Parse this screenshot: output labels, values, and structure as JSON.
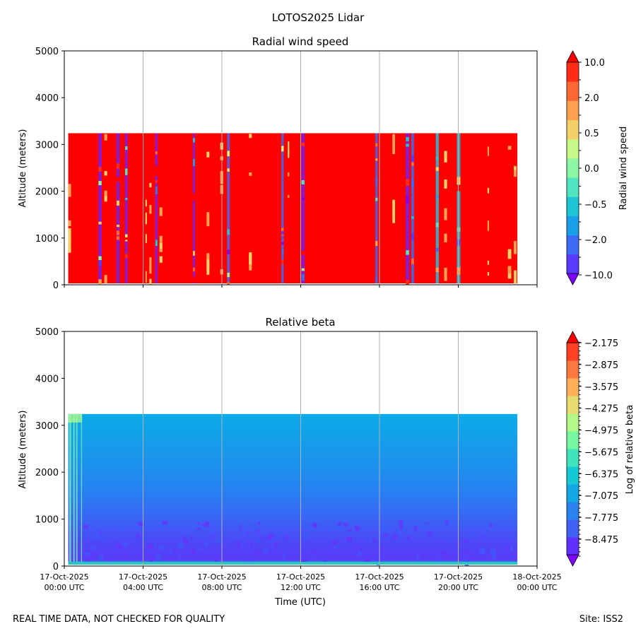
{
  "figure_title": "LOTOS2025 Lidar",
  "footer": {
    "left": "REAL TIME DATA, NOT CHECKED FOR QUALITY",
    "right": "Site: ISS2"
  },
  "chart_data": [
    {
      "type": "heatmap",
      "title": "Radial wind speed",
      "xlabel": "",
      "ylabel": "Altitude (meters)",
      "xlim_hours": [
        0,
        24
      ],
      "ylim": [
        0,
        5000
      ],
      "yticks": [
        0,
        1000,
        2000,
        3000,
        4000,
        5000
      ],
      "x_grid_hours": [
        4,
        8,
        12,
        16,
        20
      ],
      "data_extent": {
        "x_start_hours": 0.2,
        "x_end_hours": 23.0,
        "alt_min": 30,
        "alt_max": 3240
      },
      "dominant_value": "10.0",
      "colorbar": {
        "label": "Radial wind speed",
        "levels": [
          "-10.0",
          "-2.0",
          "-0.5",
          "0.0",
          "0.5",
          "2.0",
          "10.0"
        ],
        "colors": [
          "#8000ff",
          "#5a38fc",
          "#3c6cf5",
          "#1aa0ea",
          "#1ec4d8",
          "#50e4c0",
          "#8cf8a4",
          "#c8f888",
          "#f4d068",
          "#ffa050",
          "#ff6834",
          "#ff2c18",
          "#ff0000"
        ]
      }
    },
    {
      "type": "heatmap",
      "title": "Relative beta",
      "xlabel": "Time (UTC)",
      "ylabel": "Altitude (meters)",
      "xlim_hours": [
        0,
        24
      ],
      "ylim": [
        0,
        5000
      ],
      "yticks": [
        0,
        1000,
        2000,
        3000,
        4000,
        5000
      ],
      "x_grid_hours": [
        4,
        8,
        12,
        16,
        20
      ],
      "xtick_labels": [
        [
          "17-Oct-2025",
          "00:00 UTC"
        ],
        [
          "17-Oct-2025",
          "04:00 UTC"
        ],
        [
          "17-Oct-2025",
          "08:00 UTC"
        ],
        [
          "17-Oct-2025",
          "12:00 UTC"
        ],
        [
          "17-Oct-2025",
          "16:00 UTC"
        ],
        [
          "17-Oct-2025",
          "20:00 UTC"
        ],
        [
          "18-Oct-2025",
          "00:00 UTC"
        ]
      ],
      "data_extent": {
        "x_start_hours": 0.2,
        "x_end_hours": 23.0,
        "alt_min": 30,
        "alt_max": 3240
      },
      "colorbar": {
        "label": "Log of relative beta",
        "levels": [
          "-8.475",
          "-7.775",
          "-7.075",
          "-6.375",
          "-5.675",
          "-4.975",
          "-4.275",
          "-3.575",
          "-2.875",
          "-2.175"
        ],
        "colors": [
          "#8000ff",
          "#6030fe",
          "#4060f6",
          "#2a82ee",
          "#12a8e4",
          "#14c8d4",
          "#40e4bc",
          "#78f8a0",
          "#b4f888",
          "#e8dc70",
          "#ffb058",
          "#ff7840",
          "#ff4024",
          "#ff0000"
        ]
      }
    }
  ]
}
